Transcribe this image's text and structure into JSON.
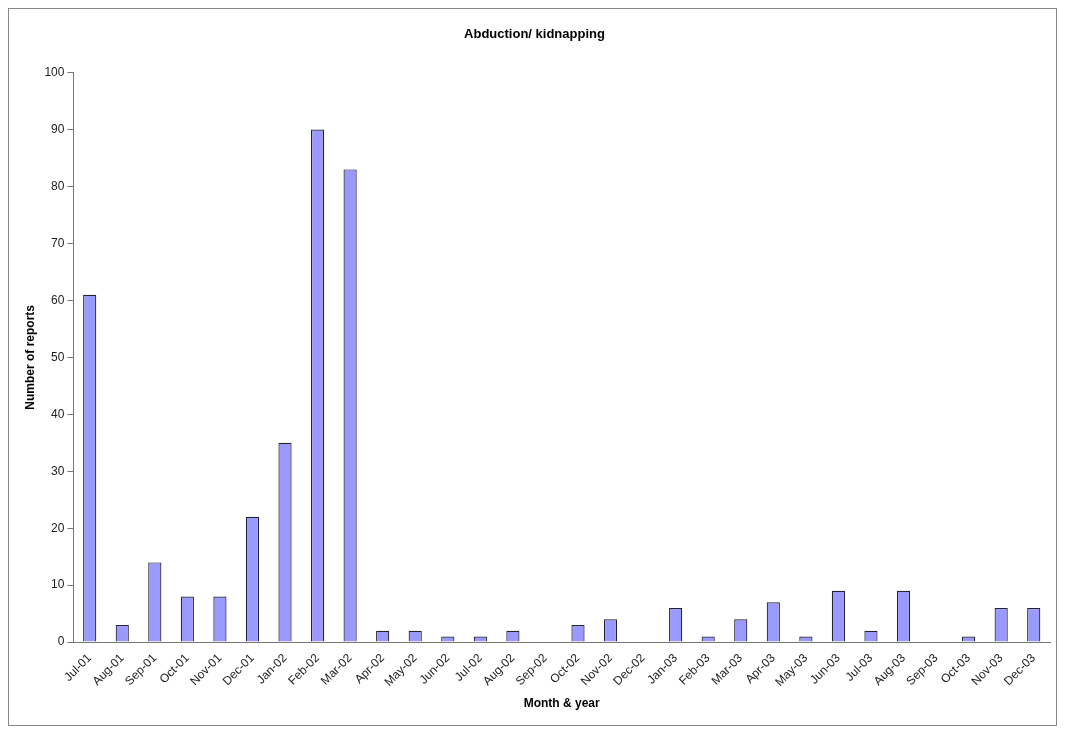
{
  "chart_data": {
    "type": "bar",
    "title": "Abduction/ kidnapping",
    "xlabel": "Month & year",
    "ylabel": "Number of reports",
    "categories": [
      "Jul-01",
      "Aug-01",
      "Sep-01",
      "Oct-01",
      "Nov-01",
      "Dec-01",
      "Jan-02",
      "Feb-02",
      "Mar-02",
      "Apr-02",
      "May-02",
      "Jun-02",
      "Jul-02",
      "Aug-02",
      "Sep-02",
      "Oct-02",
      "Nov-02",
      "Dec-02",
      "Jan-03",
      "Feb-03",
      "Mar-03",
      "Apr-03",
      "May-03",
      "Jun-03",
      "Jul-03",
      "Aug-03",
      "Sep-03",
      "Oct-03",
      "Nov-03",
      "Dec-03"
    ],
    "values": [
      61,
      3,
      14,
      8,
      8,
      22,
      35,
      90,
      83,
      2,
      2,
      1,
      1,
      2,
      0,
      3,
      4,
      0,
      6,
      1,
      4,
      7,
      1,
      9,
      2,
      9,
      0,
      1,
      6,
      6
    ],
    "color": "#9999ff",
    "ylim": [
      0,
      100
    ],
    "yticks": [
      0,
      10,
      20,
      30,
      40,
      50,
      60,
      70,
      80,
      90,
      100
    ],
    "grid": false,
    "legend": false
  }
}
